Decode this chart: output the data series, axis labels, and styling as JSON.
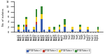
{
  "dates": [
    "Aug14",
    "Aug15",
    "Aug16",
    "Aug17",
    "Aug18",
    "Aug19",
    "Aug20",
    "Aug21",
    "Aug22",
    "Aug23",
    "Aug24",
    "Aug25",
    "Aug26",
    "Aug27",
    "Aug28",
    "Aug29",
    "Aug30",
    "Aug31",
    "Sep1",
    "Sep2",
    "Sep3",
    "Sep4",
    "Sep5",
    "Sep6",
    "Sep7",
    "Sep8",
    "Sep9",
    "Sep10",
    "Sep11",
    "Sep12",
    "Sep13",
    "Sep14"
  ],
  "pattern1": [
    1,
    0,
    1,
    2,
    1,
    0,
    1,
    3,
    0,
    5,
    1,
    0,
    1,
    0,
    0,
    0,
    1,
    0,
    2,
    0,
    0,
    1,
    0,
    0,
    1,
    0,
    0,
    1,
    0,
    0,
    0,
    0
  ],
  "pattern2": [
    0,
    0,
    0,
    1,
    0,
    0,
    0,
    1,
    0,
    0,
    0,
    0,
    0,
    0,
    0,
    0,
    0,
    0,
    0,
    0,
    0,
    0,
    0,
    0,
    0,
    0,
    0,
    0,
    0,
    0,
    0,
    0
  ],
  "pattern3": [
    1,
    0,
    1,
    2,
    0,
    0,
    1,
    2,
    0,
    2,
    0,
    0,
    1,
    0,
    1,
    0,
    1,
    0,
    1,
    0,
    0,
    1,
    0,
    0,
    1,
    0,
    0,
    1,
    0,
    0,
    0,
    1
  ],
  "pattern4": [
    1,
    0,
    1,
    1,
    0,
    0,
    0,
    3,
    0,
    3,
    0,
    0,
    0,
    0,
    1,
    0,
    1,
    0,
    2,
    0,
    0,
    0,
    0,
    0,
    1,
    0,
    0,
    0,
    0,
    0,
    0,
    1
  ],
  "color1": "#3a5dae",
  "color2": "#c0392b",
  "color3": "#f0d020",
  "color4": "#3a8a3a",
  "ylabel": "No. of isolates",
  "legend_labels": [
    "PFGE Pattern 1",
    "PFGE Pattern 2",
    "PFGE Pattern 3",
    "PFGE Pattern 4"
  ],
  "ylim": [
    0,
    12
  ]
}
